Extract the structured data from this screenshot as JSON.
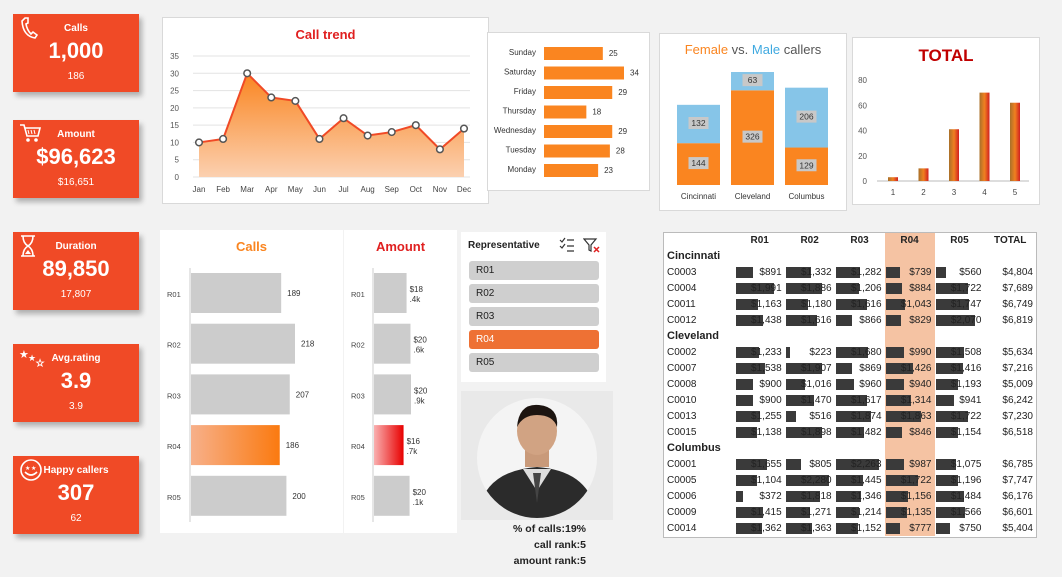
{
  "colors": {
    "accent": "#f04a26",
    "orange": "#fa8520",
    "grey": "#cccccc",
    "female": "#fa8520",
    "male": "#86c5e8",
    "dark_red": "#c00000"
  },
  "kpis": [
    {
      "title": "Calls",
      "value": "1,000",
      "sub": "186",
      "icon": "phone-icon"
    },
    {
      "title": "Amount",
      "value": "$96,623",
      "sub": "$16,651",
      "icon": "cart-icon"
    },
    {
      "title": "Duration",
      "value": "89,850",
      "sub": "17,807",
      "icon": "hourglass-icon"
    },
    {
      "title": "Avg.rating",
      "value": "3.9",
      "sub": "3.9",
      "icon": "stars-icon"
    },
    {
      "title": "Happy callers",
      "value": "307",
      "sub": "62",
      "icon": "smiley-icon"
    }
  ],
  "call_trend": {
    "title": "Call trend",
    "categories": [
      "Jan",
      "Feb",
      "Mar",
      "Apr",
      "May",
      "Jun",
      "Jul",
      "Aug",
      "Sep",
      "Oct",
      "Nov",
      "Dec"
    ],
    "values": [
      10,
      11,
      30,
      23,
      22,
      11,
      17,
      12,
      13,
      15,
      8,
      14
    ],
    "yticks": [
      "0",
      "5",
      "10",
      "15",
      "20",
      "25",
      "30",
      "35"
    ]
  },
  "weekday": {
    "categories": [
      "Sunday",
      "Saturday",
      "Friday",
      "Thursday",
      "Wednesday",
      "Tuesday",
      "Monday"
    ],
    "values": [
      25,
      34,
      29,
      18,
      29,
      28,
      23
    ]
  },
  "gender": {
    "title_female": "Female",
    "title_vs": " vs. ",
    "title_male": "Male",
    "title_rest": " callers",
    "categories": [
      "Cincinnati",
      "Cleveland",
      "Columbus"
    ],
    "female": [
      144,
      326,
      129
    ],
    "male": [
      132,
      63,
      206
    ]
  },
  "total_chart": {
    "title": "TOTAL",
    "categories": [
      "1",
      "2",
      "3",
      "4",
      "5"
    ],
    "values": [
      3,
      10,
      41,
      70,
      62
    ],
    "yticks": [
      "0",
      "20",
      "40",
      "60",
      "80"
    ]
  },
  "calls_rep": {
    "title": "Calls",
    "categories": [
      "R01",
      "R02",
      "R03",
      "R04",
      "R05"
    ],
    "values": [
      189,
      218,
      207,
      186,
      200
    ],
    "labels": [
      "189",
      "218",
      "207",
      "186",
      "200"
    ]
  },
  "amount_rep": {
    "title": "Amount",
    "categories": [
      "R01",
      "R02",
      "R03",
      "R04",
      "R05"
    ],
    "values": [
      18400,
      20600,
      20900,
      16700,
      20100
    ],
    "labels": [
      [
        "$18",
        ".4k"
      ],
      [
        "$20",
        ".6k"
      ],
      [
        "$20",
        ".9k"
      ],
      [
        "$16",
        ".7k"
      ],
      [
        "$20",
        ".1k"
      ]
    ]
  },
  "slicer": {
    "title": "Representative",
    "items": [
      "R01",
      "R02",
      "R03",
      "R04",
      "R05"
    ],
    "selected": "R04"
  },
  "rep_info": {
    "pct_calls": "% of calls:19%",
    "call_rank": "call rank:5",
    "amount_rank": "amount rank:5"
  },
  "matrix": {
    "headers": [
      "",
      "R01",
      "R02",
      "R03",
      "R04",
      "R05",
      "TOTAL"
    ],
    "groups": [
      {
        "name": "Cincinnati",
        "rows": [
          {
            "id": "C0003",
            "vals": [
              "$891",
              "$1,332",
              "$1,282",
              "$739",
              "$560"
            ],
            "total": "$4,804"
          },
          {
            "id": "C0004",
            "vals": [
              "$1,991",
              "$1,886",
              "$1,206",
              "$884",
              "$1,722"
            ],
            "total": "$7,689"
          },
          {
            "id": "C0011",
            "vals": [
              "$1,163",
              "$1,180",
              "$1,616",
              "$1,043",
              "$1,747"
            ],
            "total": "$6,749"
          },
          {
            "id": "C0012",
            "vals": [
              "$1,438",
              "$1,616",
              "$866",
              "$829",
              "$2,070"
            ],
            "total": "$6,819"
          }
        ]
      },
      {
        "name": "Cleveland",
        "rows": [
          {
            "id": "C0002",
            "vals": [
              "$1,233",
              "$223",
              "$1,680",
              "$990",
              "$1,508"
            ],
            "total": "$5,634"
          },
          {
            "id": "C0007",
            "vals": [
              "$1,538",
              "$1,907",
              "$869",
              "$1,426",
              "$1,416"
            ],
            "total": "$7,216"
          },
          {
            "id": "C0008",
            "vals": [
              "$900",
              "$1,016",
              "$960",
              "$940",
              "$1,193"
            ],
            "total": "$5,009"
          },
          {
            "id": "C0010",
            "vals": [
              "$900",
              "$1,470",
              "$1,617",
              "$1,314",
              "$941"
            ],
            "total": "$6,242"
          },
          {
            "id": "C0013",
            "vals": [
              "$1,255",
              "$516",
              "$1,874",
              "$1,863",
              "$1,722"
            ],
            "total": "$7,230"
          },
          {
            "id": "C0015",
            "vals": [
              "$1,138",
              "$1,898",
              "$1,482",
              "$846",
              "$1,154"
            ],
            "total": "$6,518"
          }
        ]
      },
      {
        "name": "Columbus",
        "rows": [
          {
            "id": "C0001",
            "vals": [
              "$1,655",
              "$805",
              "$2,263",
              "$987",
              "$1,075"
            ],
            "total": "$6,785"
          },
          {
            "id": "C0005",
            "vals": [
              "$1,104",
              "$2,280",
              "$1,445",
              "$1,722",
              "$1,196"
            ],
            "total": "$7,747"
          },
          {
            "id": "C0006",
            "vals": [
              "$372",
              "$1,818",
              "$1,346",
              "$1,156",
              "$1,484"
            ],
            "total": "$6,176"
          },
          {
            "id": "C0009",
            "vals": [
              "$1,415",
              "$1,271",
              "$1,214",
              "$1,135",
              "$1,566"
            ],
            "total": "$6,601"
          },
          {
            "id": "C0014",
            "vals": [
              "$1,362",
              "$1,363",
              "$1,152",
              "$777",
              "$750"
            ],
            "total": "$5,404"
          }
        ]
      }
    ]
  }
}
